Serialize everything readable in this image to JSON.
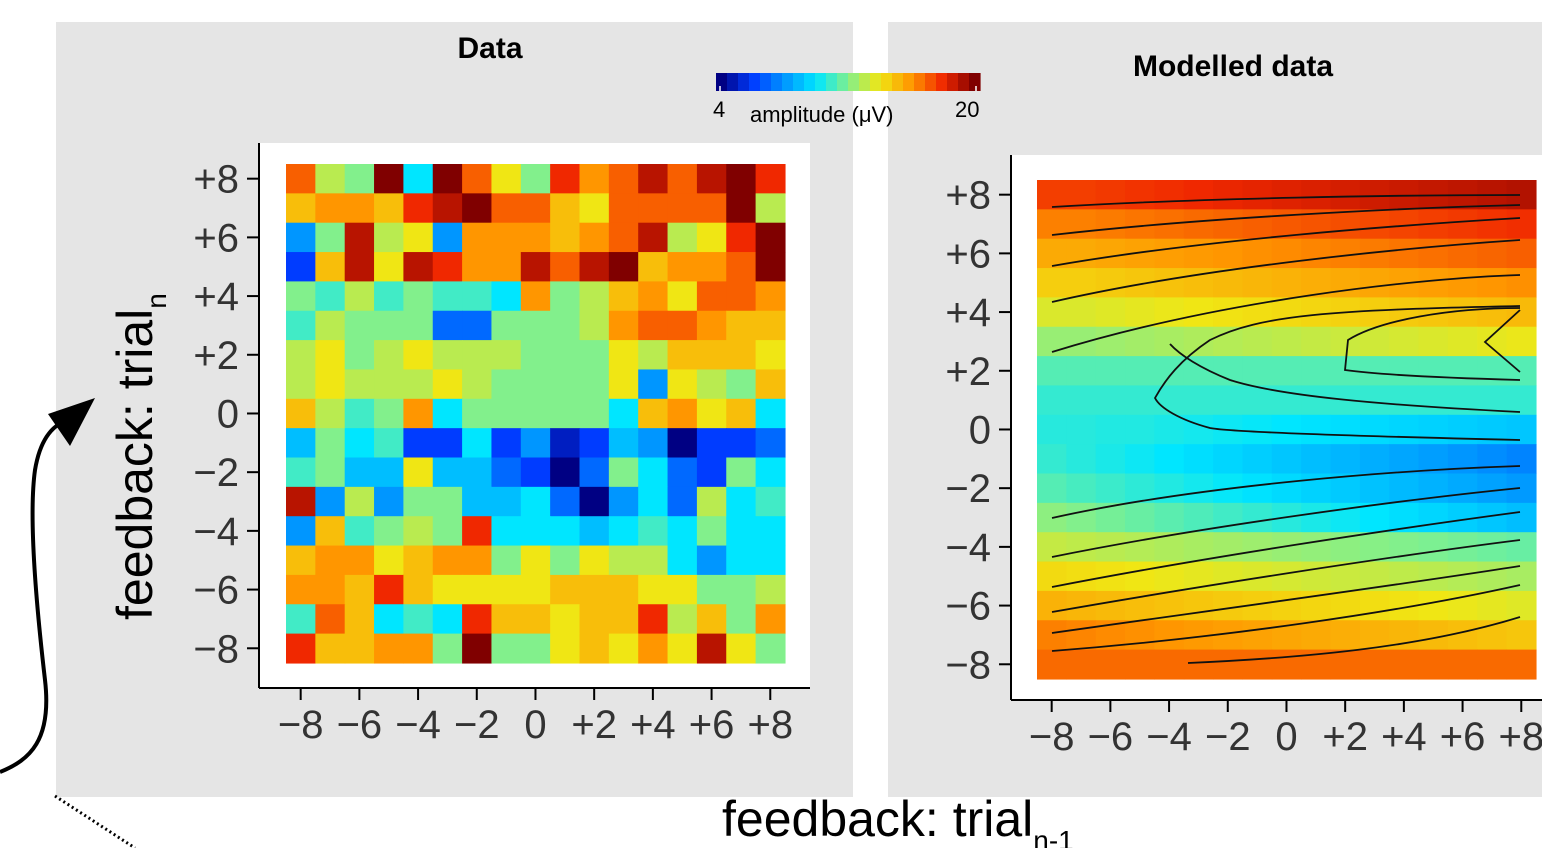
{
  "chart_data": [
    {
      "type": "heatmap",
      "title": "Data",
      "x": [
        -8,
        -7,
        -6,
        -5,
        -4,
        -3,
        -2,
        -1,
        0,
        1,
        2,
        3,
        4,
        5,
        6,
        7,
        8
      ],
      "y": [
        -8,
        -7,
        -6,
        -5,
        -4,
        -3,
        -2,
        -1,
        0,
        1,
        2,
        3,
        4,
        5,
        6,
        7,
        8
      ],
      "xticks": [
        "−8",
        "−6",
        "−4",
        "−2",
        "0",
        "+2",
        "+4",
        "+6",
        "+8"
      ],
      "yticks": [
        "−8",
        "−6",
        "−4",
        "−2",
        "0",
        "+2",
        "+4",
        "+6",
        "+8"
      ],
      "xlim": [
        -8.5,
        8.5
      ],
      "ylim": [
        -8.5,
        8.5
      ],
      "values": [
        [
          17,
          13,
          12,
          20,
          10,
          20,
          17,
          14,
          12,
          18,
          16,
          17,
          19,
          17,
          19,
          20,
          18
        ],
        [
          15,
          16,
          16,
          15,
          18,
          19,
          20,
          17,
          17,
          15,
          14,
          17,
          17,
          17,
          17,
          20,
          13
        ],
        [
          8,
          12,
          19,
          13,
          14,
          8,
          16,
          16,
          16,
          15,
          16,
          17,
          19,
          13,
          14,
          18,
          20
        ],
        [
          6,
          15,
          19,
          14,
          19,
          18,
          16,
          16,
          19,
          17,
          19,
          20,
          15,
          16,
          16,
          17,
          20
        ],
        [
          12,
          11,
          13,
          11,
          12,
          11,
          11,
          10,
          16,
          12,
          13,
          15,
          16,
          14,
          17,
          17,
          16
        ],
        [
          11,
          13,
          12,
          12,
          12,
          7,
          7,
          12,
          12,
          12,
          13,
          16,
          17,
          17,
          16,
          15,
          15
        ],
        [
          13,
          14,
          12,
          13,
          14,
          13,
          13,
          13,
          12,
          12,
          12,
          14,
          13,
          15,
          15,
          15,
          14
        ],
        [
          13,
          14,
          13,
          13,
          13,
          14,
          13,
          12,
          12,
          12,
          12,
          14,
          8,
          14,
          13,
          12,
          15
        ],
        [
          15,
          13,
          11,
          12,
          16,
          10,
          12,
          12,
          12,
          12,
          12,
          10,
          15,
          16,
          14,
          15,
          10
        ],
        [
          9,
          12,
          10,
          11,
          6,
          6,
          10,
          6,
          8,
          5,
          6,
          9,
          8,
          4,
          6,
          6,
          7
        ],
        [
          11,
          12,
          9,
          9,
          14,
          9,
          9,
          7,
          6,
          4,
          7,
          12,
          10,
          7,
          6,
          12,
          10
        ],
        [
          19,
          8,
          13,
          8,
          12,
          12,
          9,
          9,
          10,
          7,
          4,
          8,
          10,
          7,
          13,
          10,
          11
        ],
        [
          8,
          15,
          11,
          12,
          13,
          12,
          18,
          10,
          10,
          10,
          9,
          10,
          11,
          10,
          12,
          10,
          10
        ],
        [
          15,
          16,
          16,
          14,
          15,
          16,
          16,
          12,
          14,
          12,
          14,
          13,
          13,
          10,
          8,
          10,
          10
        ],
        [
          16,
          16,
          15,
          18,
          15,
          14,
          14,
          14,
          14,
          15,
          15,
          15,
          14,
          14,
          12,
          12,
          13
        ],
        [
          11,
          17,
          15,
          10,
          11,
          10,
          18,
          15,
          15,
          14,
          15,
          15,
          18,
          13,
          15,
          12,
          16
        ],
        [
          18,
          15,
          15,
          16,
          16,
          12,
          20,
          12,
          12,
          14,
          15,
          14,
          16,
          14,
          19,
          14,
          12
        ]
      ]
    },
    {
      "type": "heatmap",
      "title": "Modelled data",
      "x": [
        -8,
        -7,
        -6,
        -5,
        -4,
        -3,
        -2,
        -1,
        0,
        1,
        2,
        3,
        4,
        5,
        6,
        7,
        8
      ],
      "y": [
        -8,
        -7,
        -6,
        -5,
        -4,
        -3,
        -2,
        -1,
        0,
        1,
        2,
        3,
        4,
        5,
        6,
        7,
        8
      ],
      "xticks": [
        "−8",
        "−6",
        "−4",
        "−2",
        "0",
        "+2",
        "+4",
        "+6",
        "+8"
      ],
      "yticks": [
        "−8",
        "−6",
        "−4",
        "−2",
        "0",
        "+2",
        "+4",
        "+6",
        "+8"
      ],
      "xlim": [
        -8.5,
        8.5
      ],
      "ylim": [
        -8.5,
        8.5
      ],
      "contours": true,
      "values": [
        [
          17.6,
          17.6,
          17.7,
          17.8,
          17.9,
          18.0,
          18.1,
          18.2,
          18.3,
          18.4,
          18.5,
          18.6,
          18.7,
          18.8,
          18.9,
          19.0,
          19.1
        ],
        [
          16.4,
          16.4,
          16.5,
          16.6,
          16.7,
          16.8,
          16.9,
          17.0,
          17.1,
          17.2,
          17.3,
          17.4,
          17.5,
          17.6,
          17.7,
          17.8,
          17.9
        ],
        [
          15.5,
          15.5,
          15.6,
          15.7,
          15.8,
          15.9,
          16.0,
          16.1,
          16.2,
          16.3,
          16.4,
          16.5,
          16.6,
          16.7,
          16.8,
          16.9,
          17.0
        ],
        [
          14.6,
          14.6,
          14.7,
          14.8,
          14.9,
          15.0,
          15.1,
          15.2,
          15.3,
          15.4,
          15.5,
          15.6,
          15.7,
          15.8,
          15.9,
          16.0,
          16.1
        ],
        [
          13.6,
          13.6,
          13.7,
          13.8,
          13.9,
          14.0,
          14.1,
          14.2,
          14.3,
          14.4,
          14.5,
          14.6,
          14.7,
          14.8,
          14.9,
          15.0,
          15.1
        ],
        [
          12.4,
          12.4,
          12.5,
          12.6,
          12.7,
          12.8,
          12.9,
          13.0,
          13.1,
          13.2,
          13.3,
          13.4,
          13.5,
          13.6,
          13.7,
          13.8,
          13.9
        ],
        [
          11.3,
          11.3,
          11.3,
          11.3,
          11.3,
          11.3,
          11.3,
          11.3,
          11.3,
          11.3,
          11.3,
          11.3,
          11.3,
          11.3,
          11.3,
          11.3,
          11.3
        ],
        [
          10.8,
          10.8,
          10.8,
          10.8,
          10.8,
          10.8,
          10.8,
          10.8,
          10.8,
          10.8,
          10.8,
          10.8,
          10.8,
          10.8,
          10.8,
          10.8,
          10.8
        ],
        [
          10.6,
          10.6,
          10.5,
          10.5,
          10.4,
          10.3,
          10.2,
          10.1,
          10.0,
          9.9,
          9.8,
          9.7,
          9.6,
          9.5,
          9.4,
          9.3,
          9.2
        ],
        [
          10.8,
          10.6,
          10.4,
          10.2,
          10.0,
          9.8,
          9.6,
          9.4,
          9.2,
          9.0,
          8.8,
          8.6,
          8.4,
          8.2,
          8.0,
          7.8,
          7.6
        ],
        [
          11.3,
          11.1,
          10.9,
          10.7,
          10.5,
          10.3,
          10.1,
          9.9,
          9.7,
          9.5,
          9.3,
          9.1,
          8.9,
          8.7,
          8.5,
          8.3,
          8.1
        ],
        [
          12.2,
          12.0,
          11.8,
          11.6,
          11.4,
          11.2,
          11.0,
          10.8,
          10.6,
          10.4,
          10.2,
          10.0,
          9.8,
          9.6,
          9.4,
          9.2,
          9.0
        ],
        [
          13.2,
          13.1,
          13.0,
          12.9,
          12.8,
          12.7,
          12.6,
          12.5,
          12.4,
          12.3,
          12.2,
          12.1,
          12.0,
          11.9,
          11.8,
          11.7,
          11.6
        ],
        [
          14.3,
          14.2,
          14.1,
          14.0,
          13.9,
          13.8,
          13.7,
          13.6,
          13.5,
          13.4,
          13.3,
          13.2,
          13.1,
          13.0,
          12.9,
          12.8,
          12.7
        ],
        [
          15.3,
          15.2,
          15.1,
          15.0,
          14.9,
          14.8,
          14.7,
          14.6,
          14.5,
          14.4,
          14.3,
          14.2,
          14.1,
          14.0,
          13.9,
          13.8,
          13.7
        ],
        [
          16.4,
          16.3,
          16.2,
          16.1,
          16.0,
          15.9,
          15.8,
          15.7,
          15.6,
          15.5,
          15.4,
          15.3,
          15.2,
          15.1,
          15.0,
          14.9,
          14.8
        ],
        [
          16.8,
          16.8,
          16.8,
          16.8,
          16.8,
          16.8,
          16.8,
          16.8,
          16.8,
          16.8,
          16.8,
          16.8,
          16.8,
          16.8,
          16.8,
          16.8,
          16.8
        ]
      ]
    }
  ],
  "colorbar": {
    "min": 4,
    "max": 20,
    "min_label": "4",
    "max_label": "20",
    "label": "amplitude (μV)"
  },
  "ylabel": "feedback: trial",
  "ylabel_sub": "n",
  "xlabel": "feedback: trial",
  "xlabel_sub": "n-1"
}
